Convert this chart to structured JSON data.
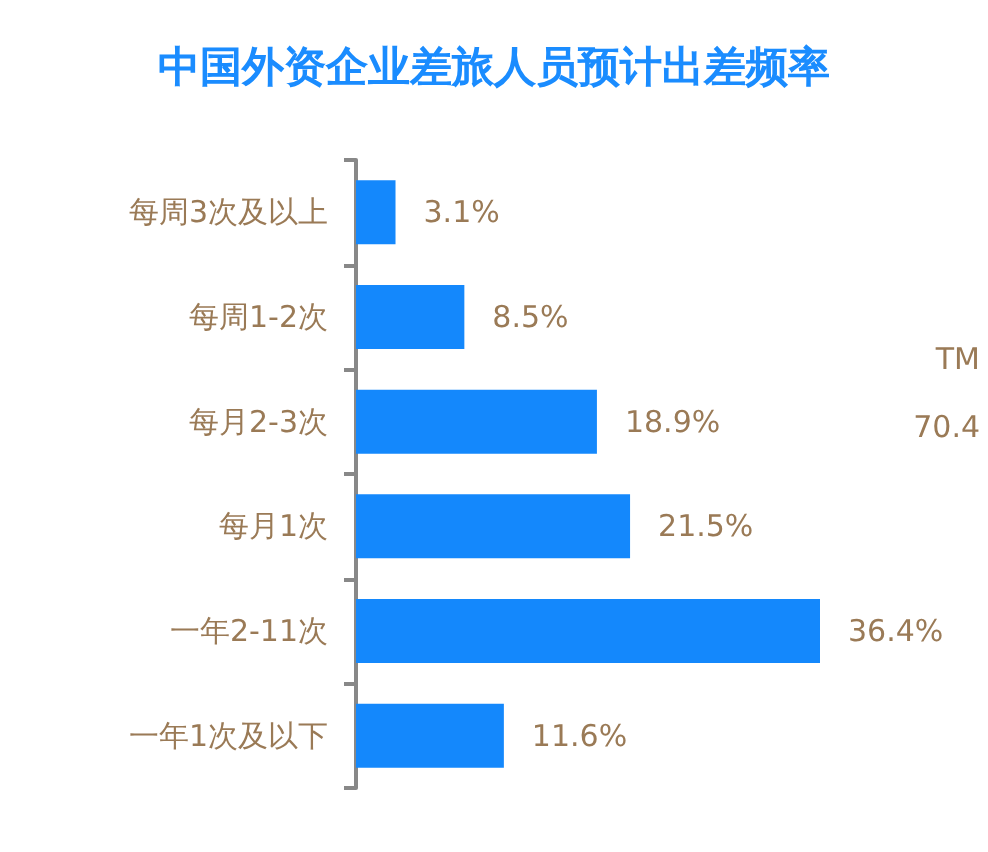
{
  "chart_data": {
    "type": "bar",
    "orientation": "horizontal",
    "title": "中国外资企业差旅人员预计出差频率",
    "categories": [
      "每周3次及以上",
      "每周1-2次",
      "每月2-3次",
      "每月1次",
      "一年2-11次",
      "一年1次及以下"
    ],
    "values": [
      3.1,
      8.5,
      18.9,
      21.5,
      36.4,
      11.6
    ],
    "value_labels": [
      "3.1%",
      "8.5%",
      "18.9%",
      "21.5%",
      "36.4%",
      "11.6%"
    ],
    "color": "#1488fc",
    "tick_labels": "y",
    "annotations": [
      "TM",
      "70.4"
    ]
  }
}
